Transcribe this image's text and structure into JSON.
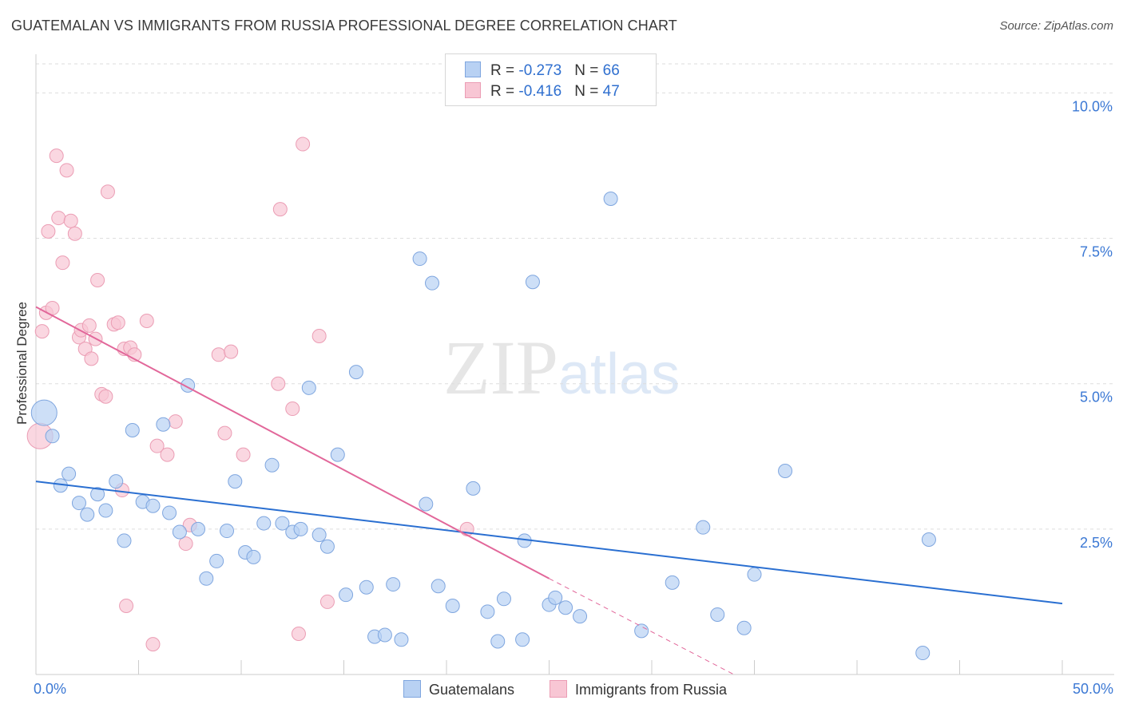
{
  "title": "GUATEMALAN VS IMMIGRANTS FROM RUSSIA PROFESSIONAL DEGREE CORRELATION CHART",
  "source": "Source: ZipAtlas.com",
  "watermark": {
    "zip": "ZIP",
    "atlas": "atlas"
  },
  "legend": {
    "rows": [
      {
        "r_label": "R = ",
        "r_value": "-0.273",
        "n_label": "N = ",
        "n_value": "66"
      },
      {
        "r_label": "R = ",
        "r_value": "-0.416",
        "n_label": "N = ",
        "n_value": "47"
      }
    ]
  },
  "bottom_legend": [
    "Guatemalans",
    "Immigrants from Russia"
  ],
  "x_axis_labels": {
    "left": "0.0%",
    "right": "50.0%"
  },
  "y_tick_labels": [
    "2.5%",
    "5.0%",
    "7.5%",
    "10.0%"
  ],
  "colors": {
    "blue_fill": "#b8d1f3",
    "blue_stroke": "#7fa6df",
    "blue_line": "#2a6fd1",
    "pink_fill": "#f8c6d4",
    "pink_stroke": "#eb9db4",
    "pink_line": "#e2679a",
    "grid": "#dddddd",
    "axis_label": "#3b78d4"
  },
  "chart_data": {
    "type": "scatter",
    "title": "GUATEMALAN VS IMMIGRANTS FROM RUSSIA PROFESSIONAL DEGREE CORRELATION CHART",
    "xlabel": "",
    "ylabel": "Professional Degree",
    "xlim": [
      0,
      50
    ],
    "ylim": [
      0,
      10.5
    ],
    "y_ticks": [
      2.5,
      5.0,
      7.5,
      10.0
    ],
    "grid": true,
    "legend_position": "top-center",
    "series": [
      {
        "name": "Guatemalans",
        "R": -0.273,
        "N": 66,
        "trend": {
          "x": [
            0,
            50
          ],
          "y": [
            3.32,
            1.22
          ]
        },
        "points": [
          {
            "x": 0.4,
            "y": 4.5,
            "big": true
          },
          {
            "x": 0.8,
            "y": 4.1
          },
          {
            "x": 1.6,
            "y": 3.45
          },
          {
            "x": 1.2,
            "y": 3.25
          },
          {
            "x": 2.1,
            "y": 2.95
          },
          {
            "x": 2.5,
            "y": 2.75
          },
          {
            "x": 3.0,
            "y": 3.1
          },
          {
            "x": 3.4,
            "y": 2.82
          },
          {
            "x": 3.9,
            "y": 3.32
          },
          {
            "x": 4.3,
            "y": 2.3
          },
          {
            "x": 4.7,
            "y": 4.2
          },
          {
            "x": 5.2,
            "y": 2.97
          },
          {
            "x": 5.7,
            "y": 2.9
          },
          {
            "x": 6.2,
            "y": 4.3
          },
          {
            "x": 6.5,
            "y": 2.78
          },
          {
            "x": 7.0,
            "y": 2.45
          },
          {
            "x": 7.4,
            "y": 4.97
          },
          {
            "x": 7.9,
            "y": 2.5
          },
          {
            "x": 8.3,
            "y": 1.65
          },
          {
            "x": 8.8,
            "y": 1.95
          },
          {
            "x": 9.3,
            "y": 2.47
          },
          {
            "x": 9.7,
            "y": 3.32
          },
          {
            "x": 10.2,
            "y": 2.1
          },
          {
            "x": 10.6,
            "y": 2.02
          },
          {
            "x": 11.1,
            "y": 2.6
          },
          {
            "x": 11.5,
            "y": 3.6
          },
          {
            "x": 12.0,
            "y": 2.6
          },
          {
            "x": 12.5,
            "y": 2.45
          },
          {
            "x": 12.9,
            "y": 2.5
          },
          {
            "x": 13.3,
            "y": 4.93
          },
          {
            "x": 13.8,
            "y": 2.4
          },
          {
            "x": 14.2,
            "y": 2.2
          },
          {
            "x": 14.7,
            "y": 3.78
          },
          {
            "x": 15.1,
            "y": 1.37
          },
          {
            "x": 15.6,
            "y": 5.2
          },
          {
            "x": 16.1,
            "y": 1.5
          },
          {
            "x": 16.5,
            "y": 0.65
          },
          {
            "x": 17.0,
            "y": 0.68
          },
          {
            "x": 17.4,
            "y": 1.55
          },
          {
            "x": 17.8,
            "y": 0.6
          },
          {
            "x": 18.7,
            "y": 7.15
          },
          {
            "x": 19.0,
            "y": 2.93
          },
          {
            "x": 19.3,
            "y": 6.73
          },
          {
            "x": 19.6,
            "y": 1.52
          },
          {
            "x": 20.3,
            "y": 1.18
          },
          {
            "x": 21.3,
            "y": 3.2
          },
          {
            "x": 22.0,
            "y": 1.08
          },
          {
            "x": 22.5,
            "y": 0.57
          },
          {
            "x": 22.8,
            "y": 1.3
          },
          {
            "x": 23.7,
            "y": 0.6
          },
          {
            "x": 23.8,
            "y": 2.3
          },
          {
            "x": 24.2,
            "y": 6.75
          },
          {
            "x": 25.0,
            "y": 1.2
          },
          {
            "x": 25.3,
            "y": 1.32
          },
          {
            "x": 25.8,
            "y": 1.15
          },
          {
            "x": 26.5,
            "y": 1.0
          },
          {
            "x": 28.0,
            "y": 8.18
          },
          {
            "x": 29.5,
            "y": 0.75
          },
          {
            "x": 31.0,
            "y": 1.58
          },
          {
            "x": 32.5,
            "y": 2.53
          },
          {
            "x": 33.2,
            "y": 1.03
          },
          {
            "x": 34.5,
            "y": 0.8
          },
          {
            "x": 35.0,
            "y": 1.72
          },
          {
            "x": 36.5,
            "y": 3.5
          },
          {
            "x": 43.2,
            "y": 0.37
          },
          {
            "x": 43.5,
            "y": 2.32
          }
        ]
      },
      {
        "name": "Immigrants from Russia",
        "R": -0.416,
        "N": 47,
        "trend": {
          "x": [
            0,
            25
          ],
          "y": [
            6.32,
            1.65
          ]
        },
        "trend_dashed": {
          "x": [
            25,
            34
          ],
          "y": [
            1.65,
            0.0
          ]
        },
        "points": [
          {
            "x": 0.2,
            "y": 4.1,
            "big": true
          },
          {
            "x": 0.3,
            "y": 5.9
          },
          {
            "x": 0.5,
            "y": 6.22
          },
          {
            "x": 0.6,
            "y": 7.62
          },
          {
            "x": 0.8,
            "y": 6.3
          },
          {
            "x": 1.0,
            "y": 8.92
          },
          {
            "x": 1.1,
            "y": 7.85
          },
          {
            "x": 1.3,
            "y": 7.08
          },
          {
            "x": 1.5,
            "y": 8.67
          },
          {
            "x": 1.7,
            "y": 7.8
          },
          {
            "x": 1.9,
            "y": 7.58
          },
          {
            "x": 2.1,
            "y": 5.8
          },
          {
            "x": 2.2,
            "y": 5.92
          },
          {
            "x": 2.4,
            "y": 5.6
          },
          {
            "x": 2.6,
            "y": 6.0
          },
          {
            "x": 2.7,
            "y": 5.43
          },
          {
            "x": 2.9,
            "y": 5.77
          },
          {
            "x": 3.0,
            "y": 6.78
          },
          {
            "x": 3.2,
            "y": 4.82
          },
          {
            "x": 3.4,
            "y": 4.78
          },
          {
            "x": 3.5,
            "y": 8.3
          },
          {
            "x": 3.8,
            "y": 6.02
          },
          {
            "x": 4.0,
            "y": 6.05
          },
          {
            "x": 4.2,
            "y": 3.17
          },
          {
            "x": 4.3,
            "y": 5.6
          },
          {
            "x": 4.4,
            "y": 1.18
          },
          {
            "x": 4.6,
            "y": 5.62
          },
          {
            "x": 4.8,
            "y": 5.5
          },
          {
            "x": 5.4,
            "y": 6.08
          },
          {
            "x": 5.7,
            "y": 0.52
          },
          {
            "x": 5.9,
            "y": 3.93
          },
          {
            "x": 6.4,
            "y": 3.78
          },
          {
            "x": 6.8,
            "y": 4.35
          },
          {
            "x": 7.3,
            "y": 2.25
          },
          {
            "x": 7.5,
            "y": 2.57
          },
          {
            "x": 8.9,
            "y": 5.5
          },
          {
            "x": 9.2,
            "y": 4.15
          },
          {
            "x": 9.5,
            "y": 5.55
          },
          {
            "x": 10.1,
            "y": 3.78
          },
          {
            "x": 11.8,
            "y": 5.0
          },
          {
            "x": 11.9,
            "y": 8.0
          },
          {
            "x": 12.5,
            "y": 4.57
          },
          {
            "x": 12.8,
            "y": 0.7
          },
          {
            "x": 13.0,
            "y": 9.12
          },
          {
            "x": 13.8,
            "y": 5.82
          },
          {
            "x": 14.2,
            "y": 1.25
          },
          {
            "x": 21.0,
            "y": 2.5
          }
        ]
      }
    ]
  }
}
